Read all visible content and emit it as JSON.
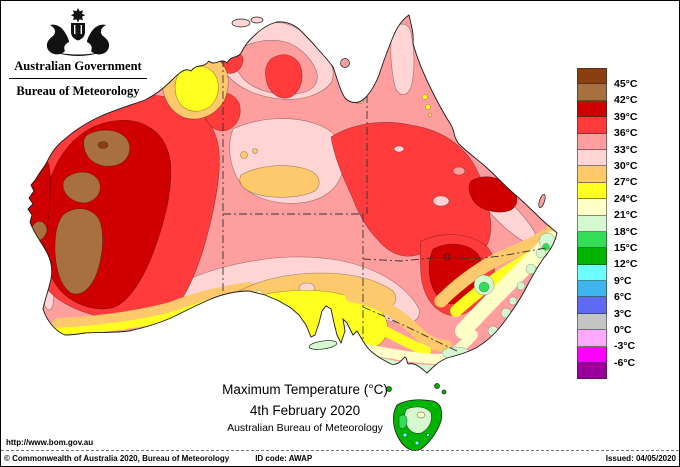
{
  "header": {
    "government": "Australian Government",
    "bureau": "Bureau of Meteorology"
  },
  "caption": {
    "heading": "Maximum Temperature (°C)",
    "date": "4th February 2020",
    "org": "Australian Bureau of Meteorology"
  },
  "legend": {
    "labels": [
      "45°C",
      "42°C",
      "39°C",
      "36°C",
      "33°C",
      "30°C",
      "27°C",
      "24°C",
      "21°C",
      "18°C",
      "15°C",
      "12°C",
      "9°C",
      "6°C",
      "3°C",
      "0°C",
      "-3°C",
      "-6°C"
    ],
    "colors": [
      "dbrown",
      "brown",
      "dred",
      "red",
      "salmon",
      "lpink",
      "orange",
      "yellow",
      "cream",
      "pgreen",
      "bgreen",
      "green",
      "cyan",
      "sky",
      "blue",
      "gray",
      "pmag",
      "mag",
      "purple"
    ]
  },
  "footer": {
    "url": "http://www.bom.gov.au",
    "copyright": "© Commonwealth of Australia 2020, Bureau of Meteorology",
    "id_code": "ID code: AWAP",
    "issued": "Issued: 04/05/2020"
  },
  "palette": {
    "dbrown": "#8B3E0F",
    "brown": "#A9703F",
    "dred": "#D00000",
    "red": "#FF3B3B",
    "salmon": "#FF9E9E",
    "lpink": "#FFD4D4",
    "orange": "#FEC96C",
    "yellow": "#FFFF20",
    "cream": "#FFFFC8",
    "pgreen": "#D6F8D0",
    "bgreen": "#33DD58",
    "green": "#00B400",
    "cyan": "#6CFFFF",
    "sky": "#3FB5F0",
    "blue": "#5F6AF2",
    "gray": "#C4C4C4",
    "pmag": "#FFA8FF",
    "mag": "#FF00FF",
    "purple": "#990099",
    "coast": "#1a1a1a",
    "contour": "#4d3a3a",
    "border_line": "#333333"
  }
}
